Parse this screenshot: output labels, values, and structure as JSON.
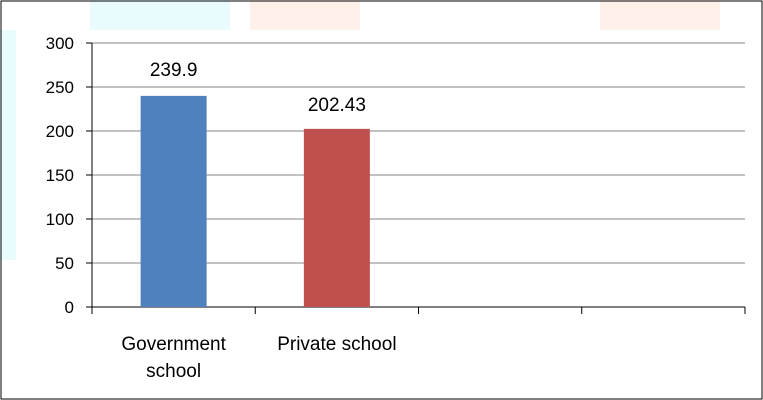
{
  "chart_data": {
    "type": "bar",
    "categories": [
      "Government school",
      "Private school"
    ],
    "category_lines": [
      [
        "Government",
        "school"
      ],
      [
        "Private school"
      ]
    ],
    "slot_count": 4,
    "series": [
      {
        "values": [
          239.9,
          202.43
        ],
        "colors": [
          "#4F81BD",
          "#C0504D"
        ]
      }
    ],
    "data_labels": [
      "239.9",
      "202.43"
    ],
    "y_ticks": [
      0,
      50,
      100,
      150,
      200,
      250,
      300
    ],
    "ylim": [
      0,
      300
    ],
    "xlabel": "",
    "ylabel": "",
    "title": "",
    "grid": true,
    "legend": "none"
  },
  "colors": {
    "axis": "#000000",
    "grid": "#868686",
    "frame": "#000000",
    "watermark_cyan": "#bff3f6",
    "watermark_orange": "#ffd8c2"
  }
}
